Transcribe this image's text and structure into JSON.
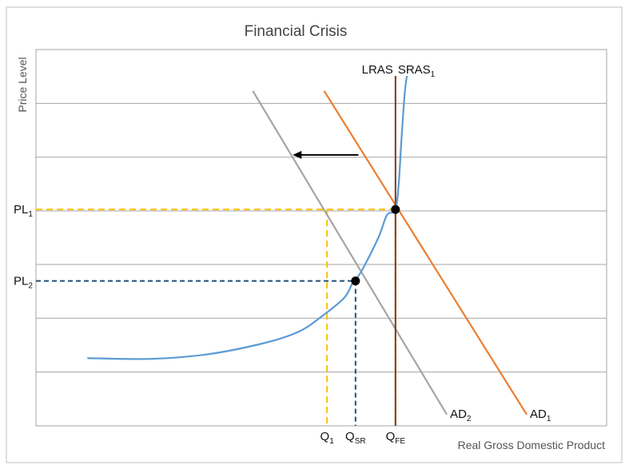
{
  "chart_data": {
    "type": "line",
    "title": "Financial Crisis",
    "ylabel": "Price Level",
    "xlabel": "Real Gross Domestic Product",
    "xlim": [
      0,
      100
    ],
    "ylim": [
      0,
      100
    ],
    "grid": true,
    "colors": {
      "sras": "#5b9bd5",
      "lras": "#7a3b1e",
      "ad1": "#ed7d31",
      "ad2": "#a5a5a5",
      "pl1_guide": "#ffc000",
      "pl2_guide": "#1f4e79",
      "gridline": "#a6a6a6",
      "arrow": "#000000"
    },
    "curves": {
      "lras": {
        "base": "LRAS",
        "sub": "",
        "x": 63,
        "y": [
          0,
          100
        ]
      },
      "sras": {
        "base": "SRAS",
        "sub": "1",
        "points": [
          [
            9,
            18
          ],
          [
            20,
            17.8
          ],
          [
            30,
            19
          ],
          [
            40,
            22
          ],
          [
            46,
            25
          ],
          [
            50,
            29
          ],
          [
            54,
            34
          ],
          [
            55.5,
            38
          ],
          [
            57,
            41
          ],
          [
            60,
            50
          ],
          [
            61.5,
            56
          ],
          [
            63,
            57.5
          ],
          [
            63.6,
            65
          ],
          [
            64,
            75
          ],
          [
            64.6,
            88
          ],
          [
            65,
            93
          ]
        ]
      },
      "ad1": {
        "base": "AD",
        "sub": "1",
        "points": [
          [
            50.5,
            89
          ],
          [
            86,
            3
          ]
        ]
      },
      "ad2": {
        "base": "AD",
        "sub": "2",
        "points": [
          [
            38,
            89
          ],
          [
            72,
            3
          ]
        ]
      }
    },
    "equilibria": [
      {
        "x": 63,
        "y": 57.5,
        "price_label_base": "PL",
        "price_label_sub": "1",
        "qty_label_base": "Q",
        "qty_label_sub": "FE"
      },
      {
        "x": 56,
        "y": 38.5,
        "price_label_base": "PL",
        "price_label_sub": "2",
        "qty_label_base": "Q",
        "qty_label_sub": "SR"
      }
    ],
    "q1": {
      "x": 51,
      "label_base": "Q",
      "label_sub": "1"
    },
    "shift_arrow": {
      "from": [
        56.5,
        72
      ],
      "to": [
        45,
        72
      ]
    },
    "x_ticks": [
      {
        "x": 51,
        "base": "Q",
        "sub": "1"
      },
      {
        "x": 56,
        "base": "Q",
        "sub": "SR"
      },
      {
        "x": 63,
        "base": "Q",
        "sub": "FE"
      }
    ],
    "y_ticks": [
      {
        "y": 57.5,
        "base": "PL",
        "sub": "1"
      },
      {
        "y": 38.5,
        "base": "PL",
        "sub": "2"
      }
    ],
    "gridlines_y": [
      14.3,
      28.6,
      42.9,
      57.1,
      71.4,
      85.7
    ]
  }
}
